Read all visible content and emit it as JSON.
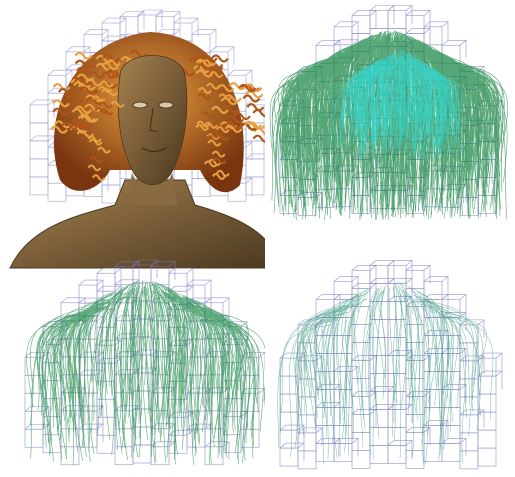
{
  "figure": {
    "panels": [
      {
        "id": "panel-rendered-head",
        "content": "rendered-bust-with-curly-hair"
      },
      {
        "id": "panel-dense-strands",
        "content": "dense-green-hair-strands-with-cyan-core-in-grid"
      },
      {
        "id": "panel-medium-strands",
        "content": "medium-density-strands-in-grid"
      },
      {
        "id": "panel-sparse-strands",
        "content": "sparse-strands-in-grid"
      }
    ],
    "colors": {
      "grid": "#7b7bc4",
      "skin": "#8a6a42",
      "skin_shadow": "#4a3820",
      "hair": "#b0551a",
      "hair_highlight": "#e8a040",
      "strand_dense": "#1f8a4a",
      "strand_core": "#35d8d0",
      "strand_sparse": "#3c9a80"
    }
  }
}
